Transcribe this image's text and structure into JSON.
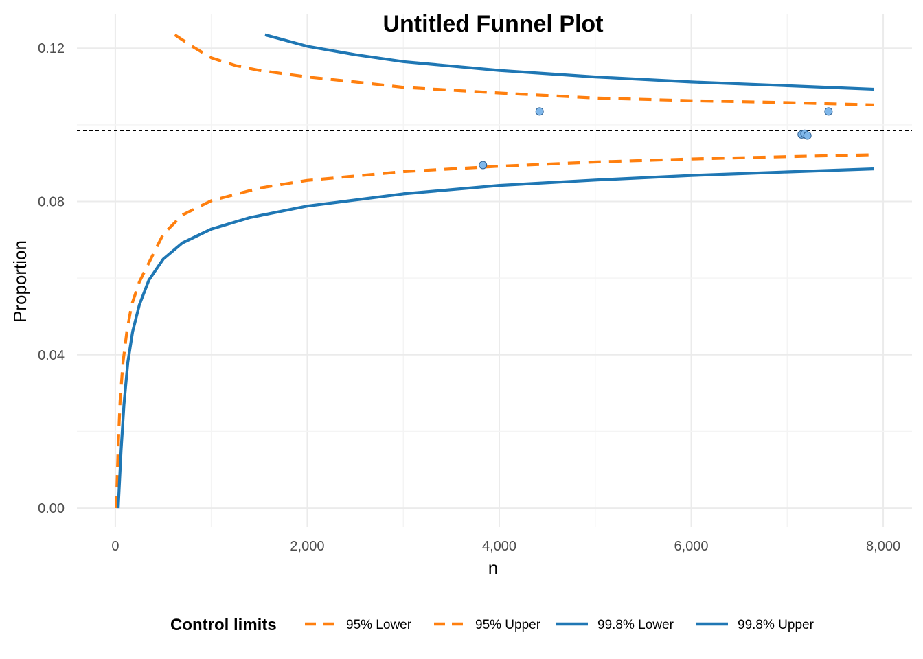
{
  "chart_data": {
    "type": "scatter",
    "title": "Untitled Funnel Plot",
    "xlabel": "n",
    "ylabel": "Proportion",
    "xlim": [
      -400,
      8300
    ],
    "ylim": [
      -0.005,
      0.129
    ],
    "x_ticks": [
      0,
      2000,
      4000,
      6000,
      8000
    ],
    "x_tick_labels": [
      "0",
      "2,000",
      "4,000",
      "6,000",
      "8,000"
    ],
    "y_ticks": [
      0.0,
      0.04,
      0.08,
      0.12
    ],
    "y_tick_labels": [
      "0.00",
      "0.04",
      "0.08",
      "0.12"
    ],
    "grid": true,
    "target_line": {
      "y": 0.0985,
      "style": "dashed",
      "color": "#000000"
    },
    "points": [
      {
        "x": 3830,
        "y": 0.0895
      },
      {
        "x": 4420,
        "y": 0.1035
      },
      {
        "x": 7150,
        "y": 0.0975
      },
      {
        "x": 7180,
        "y": 0.0977
      },
      {
        "x": 7210,
        "y": 0.0972
      },
      {
        "x": 7430,
        "y": 0.1035
      }
    ],
    "point_style": {
      "fill": "#7fb7ea",
      "stroke": "#2e5f91"
    },
    "series": [
      {
        "name": "95% Lower",
        "style": "dashed",
        "color": "#ff7f0e",
        "values": [
          [
            10,
            0.0
          ],
          [
            20,
            0.008
          ],
          [
            30,
            0.016
          ],
          [
            50,
            0.028
          ],
          [
            80,
            0.038
          ],
          [
            120,
            0.046
          ],
          [
            170,
            0.053
          ],
          [
            250,
            0.059
          ],
          [
            350,
            0.064
          ],
          [
            500,
            0.0715
          ],
          [
            700,
            0.0765
          ],
          [
            1000,
            0.0802
          ],
          [
            1500,
            0.0835
          ],
          [
            2000,
            0.0855
          ],
          [
            3000,
            0.0878
          ],
          [
            4000,
            0.0892
          ],
          [
            5000,
            0.0903
          ],
          [
            6000,
            0.0911
          ],
          [
            7000,
            0.0917
          ],
          [
            7900,
            0.0922
          ]
        ]
      },
      {
        "name": "95% Upper",
        "style": "dashed",
        "color": "#ff7f0e",
        "values": [
          [
            620,
            0.1235
          ],
          [
            800,
            0.1205
          ],
          [
            1000,
            0.1175
          ],
          [
            1250,
            0.1155
          ],
          [
            1500,
            0.1142
          ],
          [
            2000,
            0.1125
          ],
          [
            2500,
            0.1112
          ],
          [
            3000,
            0.1098
          ],
          [
            4000,
            0.1083
          ],
          [
            5000,
            0.107
          ],
          [
            6000,
            0.1063
          ],
          [
            7000,
            0.1058
          ],
          [
            7900,
            0.1052
          ]
        ]
      },
      {
        "name": "99.8% Lower",
        "style": "solid",
        "color": "#1f77b4",
        "values": [
          [
            30,
            0.0
          ],
          [
            40,
            0.005
          ],
          [
            60,
            0.015
          ],
          [
            90,
            0.027
          ],
          [
            130,
            0.038
          ],
          [
            180,
            0.046
          ],
          [
            250,
            0.053
          ],
          [
            350,
            0.0595
          ],
          [
            500,
            0.065
          ],
          [
            700,
            0.0692
          ],
          [
            1000,
            0.0728
          ],
          [
            1400,
            0.0758
          ],
          [
            2000,
            0.0788
          ],
          [
            3000,
            0.082
          ],
          [
            4000,
            0.0842
          ],
          [
            5000,
            0.0856
          ],
          [
            6000,
            0.0868
          ],
          [
            7000,
            0.0877
          ],
          [
            7900,
            0.0885
          ]
        ]
      },
      {
        "name": "99.8% Upper",
        "style": "solid",
        "color": "#1f77b4",
        "values": [
          [
            1560,
            0.1235
          ],
          [
            2000,
            0.1205
          ],
          [
            2500,
            0.1183
          ],
          [
            3000,
            0.1165
          ],
          [
            4000,
            0.1142
          ],
          [
            5000,
            0.1125
          ],
          [
            6000,
            0.1112
          ],
          [
            7000,
            0.1102
          ],
          [
            7900,
            0.1093
          ]
        ]
      }
    ],
    "legend": {
      "title": "Control limits",
      "position": "bottom",
      "entries": [
        "95% Lower",
        "95% Upper",
        "99.8% Lower",
        "99.8% Upper"
      ]
    }
  }
}
